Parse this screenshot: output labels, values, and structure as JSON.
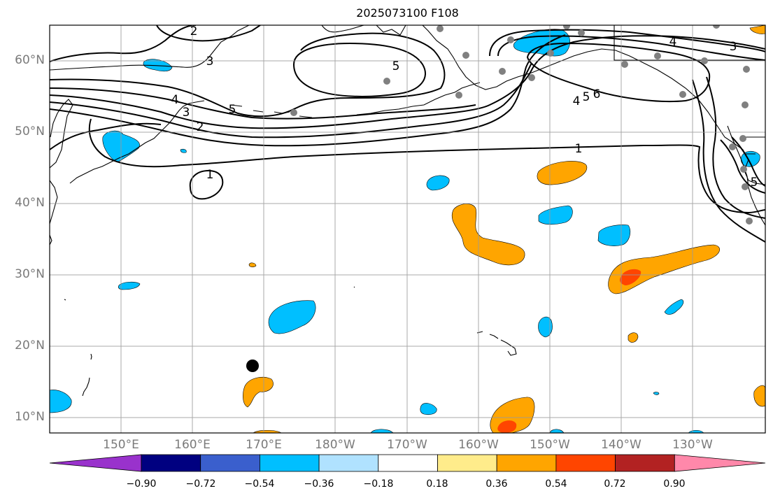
{
  "title": "2025073100 F108",
  "lat_labels": [
    "60°N",
    "50°N",
    "40°N",
    "30°N",
    "20°N",
    "10°N"
  ],
  "lon_labels": [
    "150°E",
    "160°E",
    "170°E",
    "180°W",
    "170°W",
    "160°W",
    "150°W",
    "140°W",
    "130°W"
  ],
  "colorbar": {
    "ticks": [
      "−0.90",
      "−0.72",
      "−0.54",
      "−0.36",
      "−0.18",
      "0.18",
      "0.36",
      "0.54",
      "0.72",
      "0.90"
    ],
    "colors": [
      "#9932CC",
      "#000080",
      "#3A5FCD",
      "#00BFFF",
      "#B0E2FF",
      "#FFFFFF",
      "#FFEC8B",
      "#FFA500",
      "#FF4500",
      "#B22222",
      "#FF88AA"
    ]
  },
  "contour_labels": [
    "1",
    "1",
    "2",
    "2",
    "3",
    "3",
    "3",
    "4",
    "4",
    "4",
    "5",
    "5",
    "5",
    "5",
    "6"
  ],
  "colors": {
    "positive_main": "#FFA500",
    "positive_strong": "#FF4500",
    "negative_main": "#00BFFF",
    "station_dot": "#808080",
    "marker": "#000000"
  }
}
